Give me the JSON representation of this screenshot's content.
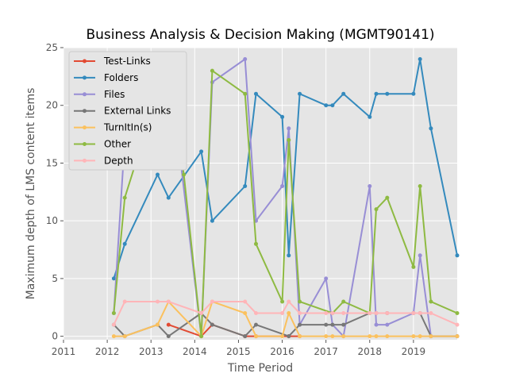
{
  "chart_data": {
    "type": "line",
    "title": "Business Analysis & Decision Making (MGMT90141)",
    "xlabel": "Time Period",
    "ylabel": "Maximum depth of LMS content items",
    "xlim": [
      2011,
      2020
    ],
    "ylim": [
      -0.3,
      25
    ],
    "xticks": [
      "2011",
      "2012",
      "2013",
      "2014",
      "2015",
      "2016",
      "2017",
      "2018",
      "2019"
    ],
    "yticks": [
      "0",
      "5",
      "10",
      "15",
      "20",
      "25"
    ],
    "grid": true,
    "legend_position": "top-left",
    "series": [
      {
        "name": "Test-Links",
        "color": "#E24A33",
        "x": [
          2013.4,
          2014.15,
          2014.4,
          2015.15,
          2015.4,
          2016.15,
          2016.4
        ],
        "y": [
          1,
          0,
          1,
          0,
          0,
          0,
          0
        ]
      },
      {
        "name": "Folders",
        "color": "#348ABD",
        "x": [
          2012.15,
          2012.4,
          2013.15,
          2013.4,
          2014.15,
          2014.4,
          2015.15,
          2015.4,
          2016.0,
          2016.15,
          2016.4,
          2017.0,
          2017.15,
          2017.4,
          2018.0,
          2018.15,
          2018.4,
          2019.0,
          2019.15,
          2019.4,
          2020.0
        ],
        "y": [
          5,
          8,
          14,
          12,
          16,
          10,
          13,
          21,
          19,
          7,
          21,
          20,
          20,
          21,
          19,
          21,
          21,
          21,
          24,
          18,
          7
        ]
      },
      {
        "name": "Files",
        "color": "#988ED5",
        "x": [
          2012.15,
          2012.4,
          2013.15,
          2013.4,
          2014.15,
          2014.4,
          2015.15,
          2015.4,
          2016.0,
          2016.15,
          2016.4,
          2017.0,
          2017.15,
          2017.4,
          2018.0,
          2018.15,
          2018.4,
          2019.0,
          2019.15,
          2019.4,
          2020.0
        ],
        "y": [
          2,
          17,
          22,
          24,
          0,
          22,
          24,
          10,
          13,
          18,
          1,
          5,
          1,
          0,
          13,
          1,
          1,
          2,
          7,
          0,
          0
        ]
      },
      {
        "name": "External Links",
        "color": "#777777",
        "x": [
          2012.15,
          2012.4,
          2013.15,
          2013.4,
          2014.15,
          2014.4,
          2015.15,
          2015.4,
          2016.15,
          2016.4,
          2017.0,
          2017.15,
          2017.4,
          2018.0,
          2018.15,
          2018.4,
          2019.0,
          2019.15,
          2019.4,
          2020.0
        ],
        "y": [
          1,
          0,
          1,
          0,
          2,
          1,
          0,
          1,
          0,
          1,
          1,
          1,
          1,
          2,
          2,
          2,
          2,
          2,
          0,
          0
        ]
      },
      {
        "name": "TurnItIn(s)",
        "color": "#FBC15E",
        "x": [
          2012.15,
          2012.4,
          2013.15,
          2013.4,
          2014.15,
          2014.4,
          2015.15,
          2015.4,
          2016.0,
          2016.15,
          2016.4,
          2017.0,
          2017.15,
          2017.4,
          2018.0,
          2018.15,
          2018.4,
          2019.0,
          2019.15,
          2019.4,
          2020.0
        ],
        "y": [
          0,
          0,
          1,
          3,
          0,
          3,
          2,
          0,
          0,
          2,
          0,
          0,
          0,
          0,
          0,
          0,
          0,
          0,
          0,
          0,
          0
        ]
      },
      {
        "name": "Other",
        "color": "#8EBA42",
        "x": [
          2012.15,
          2012.4,
          2013.15,
          2013.4,
          2013.75,
          2014.15,
          2014.4,
          2015.15,
          2015.4,
          2016.0,
          2016.15,
          2016.4,
          2017.15,
          2017.4,
          2018.0,
          2018.15,
          2018.4,
          2019.0,
          2019.15,
          2019.4,
          2020.0
        ],
        "y": [
          2,
          12,
          21,
          23,
          14,
          0,
          23,
          21,
          8,
          3,
          17,
          3,
          2,
          3,
          2,
          11,
          12,
          6,
          13,
          3,
          2
        ]
      },
      {
        "name": "Depth",
        "color": "#FFB5B8",
        "x": [
          2012.15,
          2012.4,
          2013.15,
          2013.4,
          2014.15,
          2014.4,
          2015.15,
          2015.4,
          2016.0,
          2016.15,
          2016.4,
          2017.0,
          2017.15,
          2017.4,
          2018.0,
          2018.15,
          2018.4,
          2019.0,
          2019.15,
          2019.4,
          2020.0
        ],
        "y": [
          1,
          3,
          3,
          3,
          2,
          3,
          3,
          2,
          2,
          3,
          2,
          2,
          2,
          2,
          2,
          2,
          2,
          2,
          2,
          2,
          1
        ]
      }
    ]
  },
  "colors": {
    "plot_background": "#E5E5E5",
    "grid": "#FFFFFF",
    "tick_label": "#555555"
  }
}
